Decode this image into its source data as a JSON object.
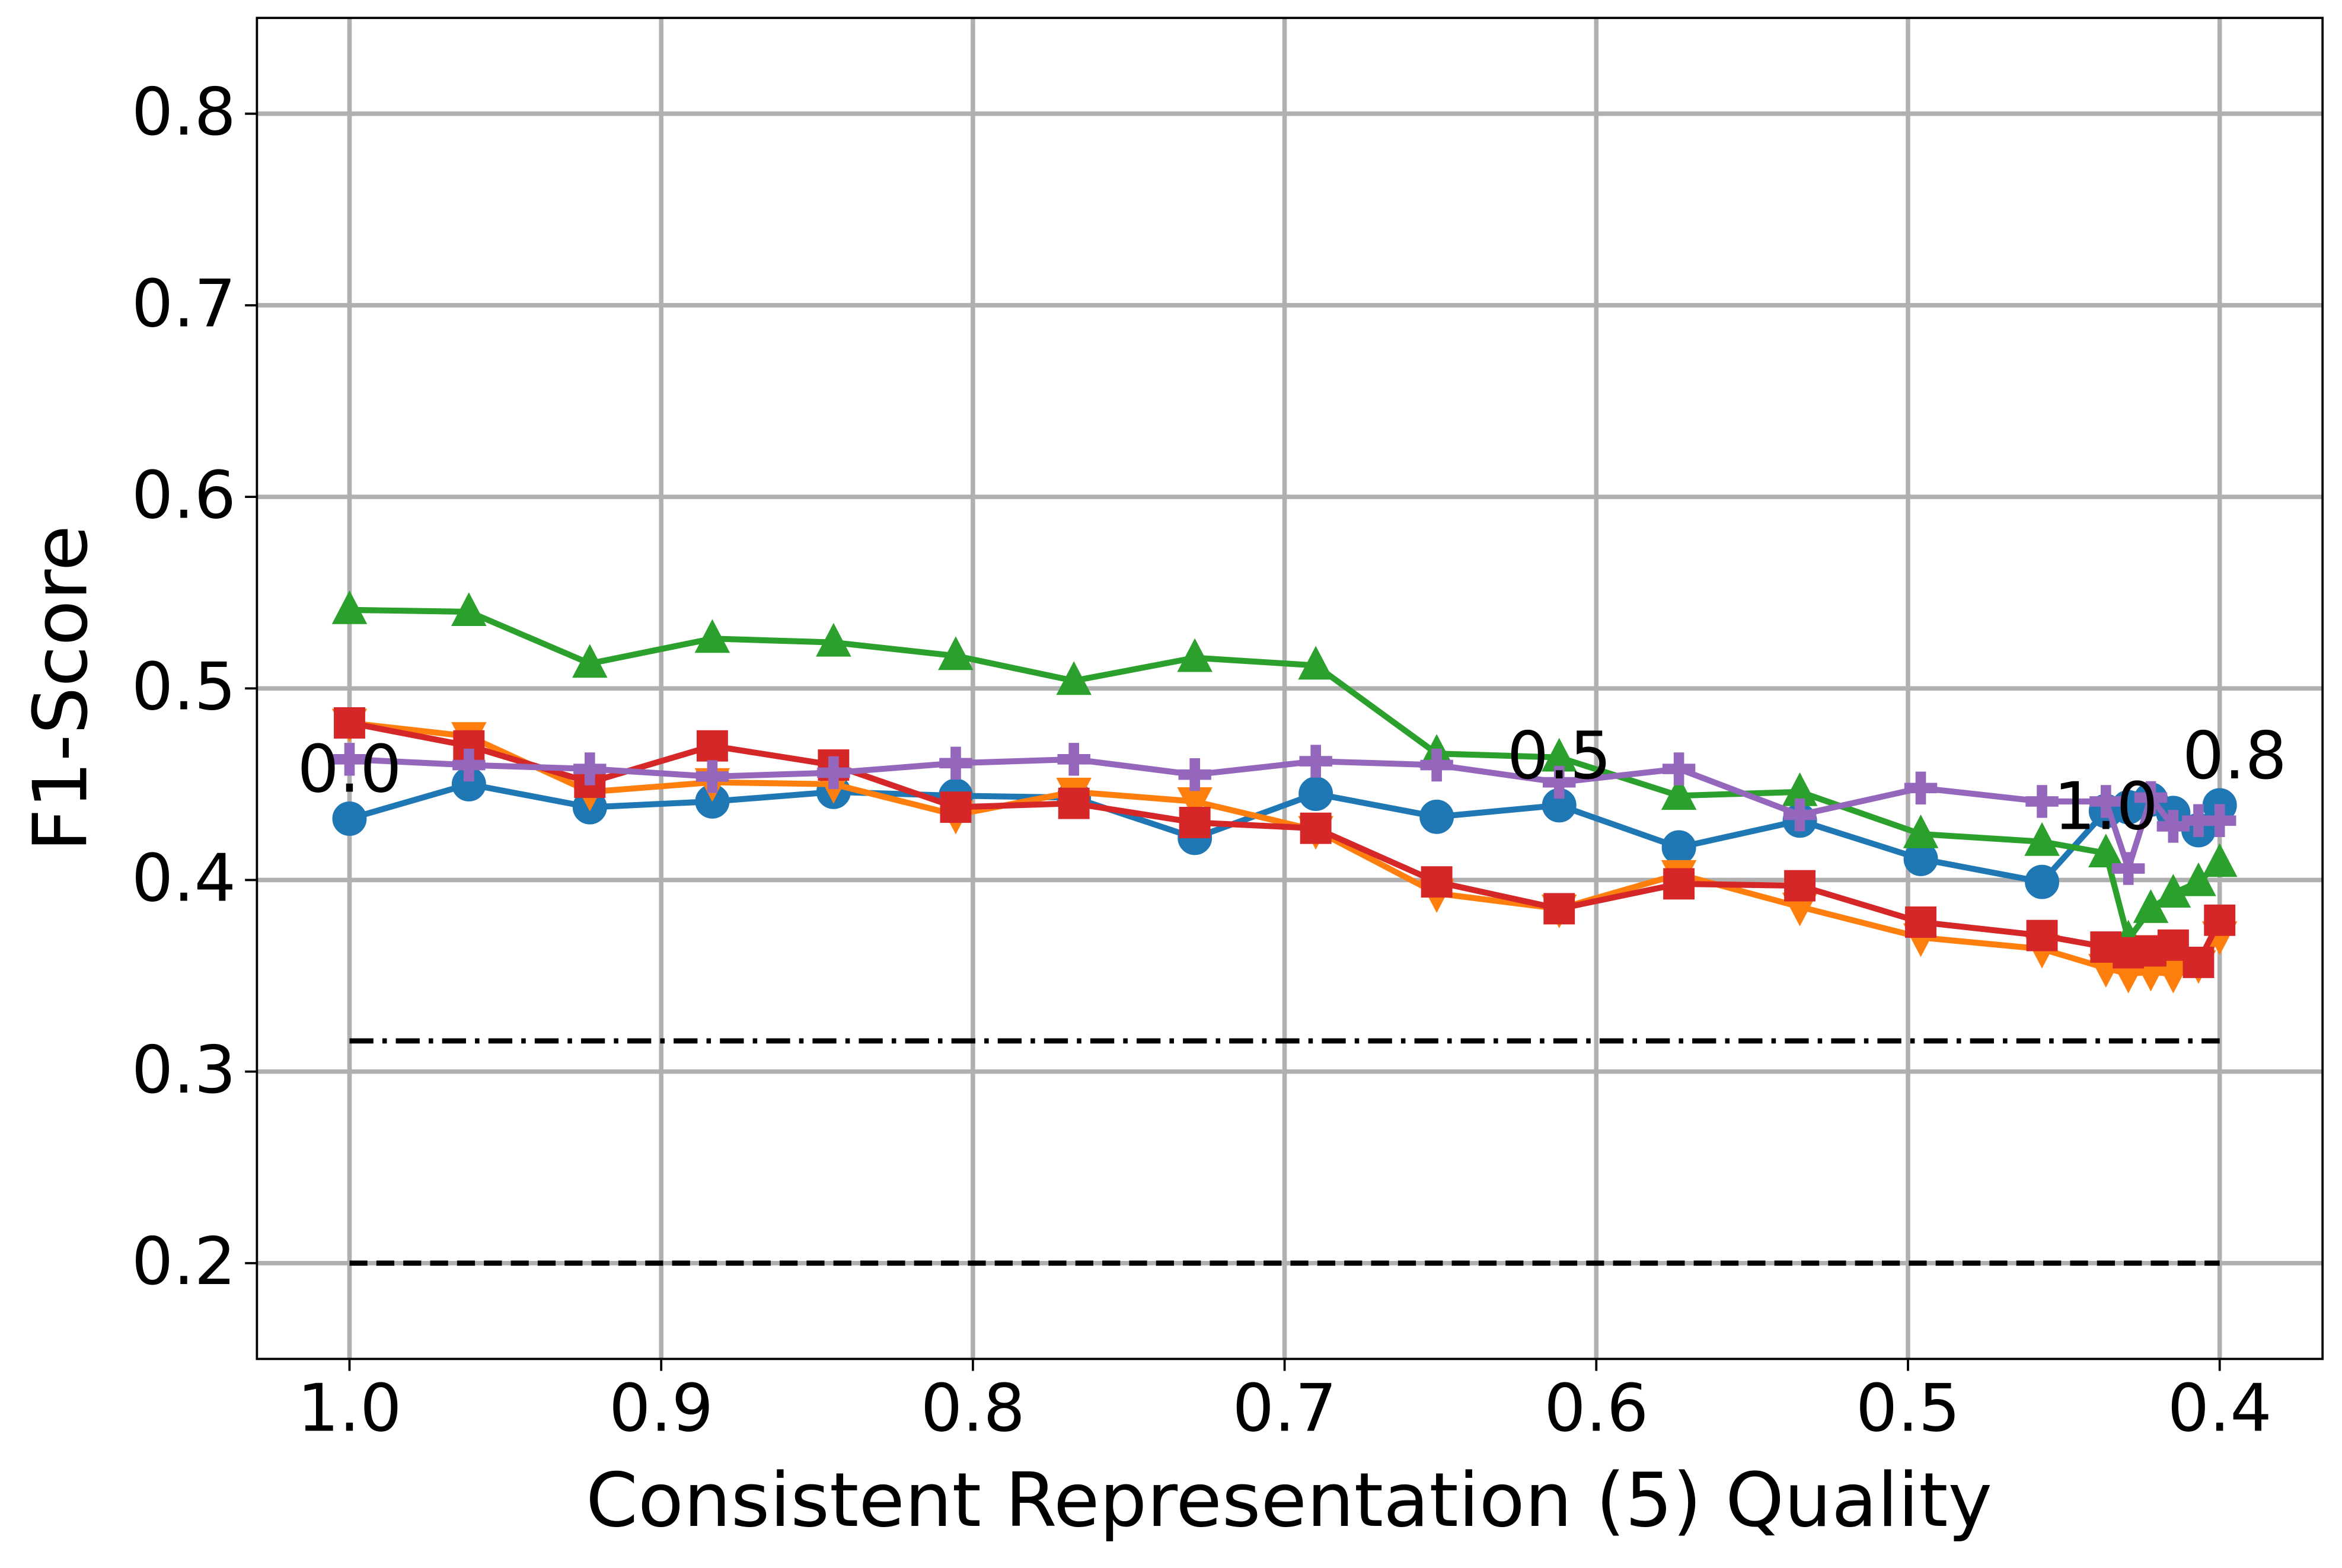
{
  "chart_data": {
    "type": "line",
    "x_label": "Consistent Representation (5) Quality",
    "y_label": "F1-Score",
    "x": [
      1.0,
      0.9617,
      0.9229,
      0.8836,
      0.8447,
      0.8055,
      0.7676,
      0.7288,
      0.69,
      0.6512,
      0.6119,
      0.5735,
      0.5347,
      0.4959,
      0.457,
      0.4365,
      0.4293,
      0.4221,
      0.4149,
      0.4068,
      0.4
    ],
    "xlim": [
      1.0297,
      0.367
    ],
    "ylim": [
      0.15,
      0.85
    ],
    "xticks": [
      {
        "value": 1.0,
        "label": "1.0"
      },
      0.9,
      0.8,
      0.7,
      0.6,
      0.5,
      0.4
    ],
    "yticks": [
      0.2,
      0.3,
      0.4,
      0.5,
      0.6,
      0.7,
      0.8
    ],
    "grid": true,
    "series": [
      {
        "color": "#1f77b4",
        "marker": "circle",
        "values": [
          0.432,
          0.45,
          0.438,
          0.441,
          0.446,
          0.444,
          0.443,
          0.422,
          0.445,
          0.433,
          0.439,
          0.417,
          0.431,
          0.411,
          0.399,
          0.436,
          0.438,
          0.442,
          0.435,
          0.426,
          0.439
        ]
      },
      {
        "color": "#ff7f0e",
        "marker": "triangle-down",
        "values": [
          0.482,
          0.475,
          0.446,
          0.451,
          0.45,
          0.434,
          0.446,
          0.441,
          0.426,
          0.393,
          0.385,
          0.403,
          0.386,
          0.37,
          0.364,
          0.354,
          0.351,
          0.352,
          0.351,
          0.356,
          0.371
        ]
      },
      {
        "color": "#2ca02c",
        "marker": "triangle-up",
        "values": [
          0.541,
          0.54,
          0.513,
          0.526,
          0.524,
          0.517,
          0.504,
          0.516,
          0.512,
          0.466,
          0.464,
          0.444,
          0.446,
          0.424,
          0.42,
          0.414,
          0.369,
          0.385,
          0.393,
          0.399,
          0.409
        ]
      },
      {
        "color": "#d62728",
        "marker": "square",
        "values": [
          0.482,
          0.47,
          0.451,
          0.47,
          0.46,
          0.438,
          0.44,
          0.43,
          0.427,
          0.399,
          0.385,
          0.398,
          0.397,
          0.378,
          0.371,
          0.365,
          0.362,
          0.363,
          0.366,
          0.357,
          0.379
        ]
      },
      {
        "color": "#9467bd",
        "marker": "plus",
        "values": [
          0.463,
          0.46,
          0.458,
          0.454,
          0.456,
          0.461,
          0.463,
          0.455,
          0.462,
          0.46,
          0.451,
          0.458,
          0.434,
          0.448,
          0.441,
          0.441,
          0.406,
          0.443,
          0.428,
          0.431,
          0.431
        ]
      }
    ],
    "annotations": [
      "0.0",
      "0.5",
      "1.0",
      "0.8"
    ],
    "hlines": [
      {
        "value": 0.316,
        "style": "dashdot",
        "color": "#000000"
      },
      {
        "value": 0.2,
        "style": "dashed",
        "color": "#000000"
      }
    ]
  }
}
